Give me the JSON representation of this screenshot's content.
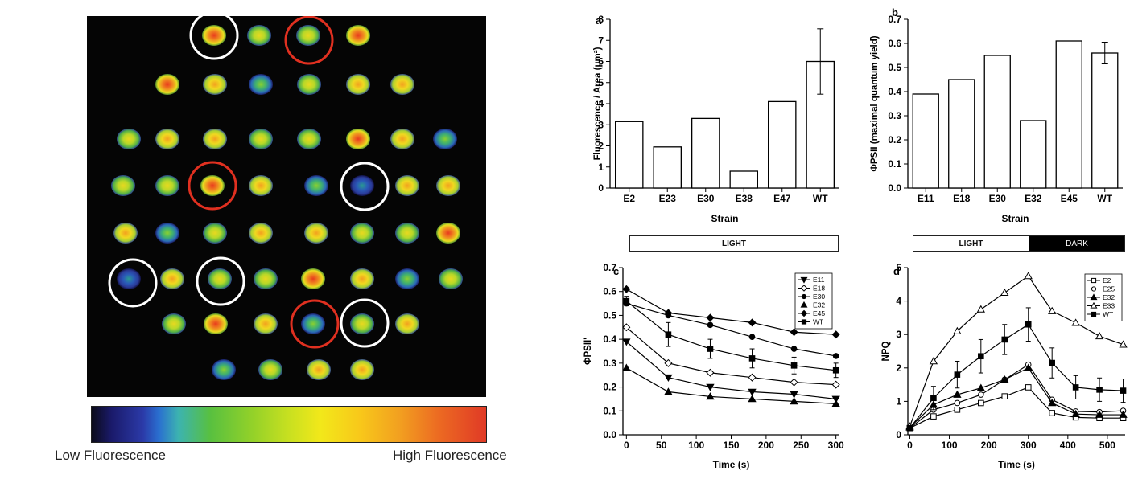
{
  "colorbar": {
    "low_label": "Low Fluorescence",
    "high_label": "High Fluorescence"
  },
  "light_bar_c": "LIGHT",
  "light_bar_d": "LIGHT",
  "dark_bar_d": "DARK",
  "chart_data": [
    {
      "panel": "a",
      "type": "bar",
      "xlabel": "Strain",
      "ylabel": "Fluorescence / Area (μm²)",
      "ylim": [
        0,
        8
      ],
      "yticks": [
        "0",
        "1",
        "2",
        "3",
        "4",
        "5",
        "6",
        "7",
        "8"
      ],
      "categories": [
        "E2",
        "E23",
        "E30",
        "E38",
        "E47",
        "WT"
      ],
      "values": [
        3.15,
        1.95,
        3.3,
        0.8,
        4.1,
        6.0
      ],
      "error": [
        null,
        null,
        null,
        null,
        null,
        1.55
      ]
    },
    {
      "panel": "b",
      "type": "bar",
      "xlabel": "Strain",
      "ylabel": "ΦPSII (maximal quantum yield)",
      "ylim": [
        0,
        0.7
      ],
      "yticks": [
        "0.0",
        "0.1",
        "0.2",
        "0.3",
        "0.4",
        "0.5",
        "0.6",
        "0.7"
      ],
      "categories": [
        "E11",
        "E18",
        "E30",
        "E32",
        "E45",
        "WT"
      ],
      "values": [
        0.39,
        0.45,
        0.55,
        0.28,
        0.61,
        0.56
      ],
      "error": [
        null,
        null,
        null,
        null,
        null,
        0.045
      ]
    },
    {
      "panel": "c",
      "type": "line",
      "xlabel": "Time (s)",
      "ylabel": "ΦPSII'",
      "xlim": [
        -5,
        305
      ],
      "ylim": [
        0,
        0.7
      ],
      "xticks": [
        0,
        50,
        100,
        150,
        200,
        250,
        300
      ],
      "yticks": [
        "0.0",
        "0.1",
        "0.2",
        "0.3",
        "0.4",
        "0.5",
        "0.6",
        "0.7"
      ],
      "x": [
        0,
        60,
        120,
        180,
        240,
        300
      ],
      "series": [
        {
          "name": "E11",
          "marker": "tri-down",
          "values": [
            0.39,
            0.24,
            0.2,
            0.18,
            0.17,
            0.15
          ]
        },
        {
          "name": "E18",
          "marker": "diamond-open",
          "values": [
            0.45,
            0.3,
            0.26,
            0.24,
            0.22,
            0.21
          ]
        },
        {
          "name": "E30",
          "marker": "circle",
          "values": [
            0.55,
            0.5,
            0.46,
            0.41,
            0.36,
            0.33
          ]
        },
        {
          "name": "E32",
          "marker": "tri-up",
          "values": [
            0.28,
            0.18,
            0.16,
            0.15,
            0.14,
            0.13
          ]
        },
        {
          "name": "E45",
          "marker": "diamond",
          "values": [
            0.61,
            0.51,
            0.49,
            0.47,
            0.43,
            0.42
          ]
        },
        {
          "name": "WT",
          "marker": "square",
          "values": [
            0.56,
            0.42,
            0.36,
            0.32,
            0.29,
            0.27
          ],
          "error": [
            0.02,
            0.05,
            0.04,
            0.04,
            0.035,
            0.03
          ]
        }
      ]
    },
    {
      "panel": "d",
      "type": "line",
      "xlabel": "Time (s)",
      "ylabel": "NPQ",
      "xlim": [
        -5,
        545
      ],
      "ylim": [
        0,
        5
      ],
      "xticks": [
        0,
        100,
        200,
        300,
        400,
        500
      ],
      "yticks": [
        "0",
        "1",
        "2",
        "3",
        "4",
        "5"
      ],
      "x": [
        0,
        60,
        120,
        180,
        240,
        300,
        360,
        420,
        480,
        540
      ],
      "series": [
        {
          "name": "E2",
          "marker": "square-open",
          "values": [
            0.2,
            0.55,
            0.75,
            0.95,
            1.15,
            1.42,
            0.65,
            0.52,
            0.5,
            0.5
          ]
        },
        {
          "name": "E25",
          "marker": "circle-open",
          "values": [
            0.2,
            0.75,
            0.95,
            1.2,
            1.65,
            2.1,
            1.05,
            0.7,
            0.68,
            0.72
          ]
        },
        {
          "name": "E32",
          "marker": "tri-up",
          "values": [
            0.22,
            0.9,
            1.2,
            1.4,
            1.65,
            2.0,
            0.95,
            0.62,
            0.6,
            0.6
          ]
        },
        {
          "name": "E33",
          "marker": "tri-up-open",
          "values": [
            0.25,
            2.2,
            3.1,
            3.75,
            4.25,
            4.75,
            3.7,
            3.35,
            2.95,
            2.7
          ]
        },
        {
          "name": "WT",
          "marker": "square",
          "values": [
            0.2,
            1.1,
            1.8,
            2.35,
            2.85,
            3.3,
            2.15,
            1.42,
            1.35,
            1.32
          ],
          "error": [
            0.05,
            0.35,
            0.4,
            0.5,
            0.45,
            0.5,
            0.45,
            0.35,
            0.35,
            0.35
          ]
        }
      ]
    }
  ]
}
